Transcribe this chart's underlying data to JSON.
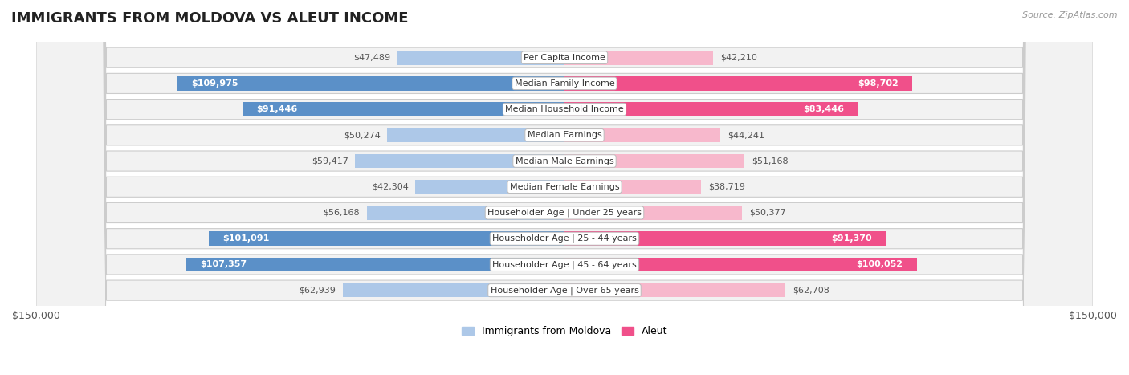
{
  "title": "IMMIGRANTS FROM MOLDOVA VS ALEUT INCOME",
  "source": "Source: ZipAtlas.com",
  "categories": [
    "Per Capita Income",
    "Median Family Income",
    "Median Household Income",
    "Median Earnings",
    "Median Male Earnings",
    "Median Female Earnings",
    "Householder Age | Under 25 years",
    "Householder Age | 25 - 44 years",
    "Householder Age | 45 - 64 years",
    "Householder Age | Over 65 years"
  ],
  "moldova_values": [
    47489,
    109975,
    91446,
    50274,
    59417,
    42304,
    56168,
    101091,
    107357,
    62939
  ],
  "aleut_values": [
    42210,
    98702,
    83446,
    44241,
    51168,
    38719,
    50377,
    91370,
    100052,
    62708
  ],
  "moldova_labels": [
    "$47,489",
    "$109,975",
    "$91,446",
    "$50,274",
    "$59,417",
    "$42,304",
    "$56,168",
    "$101,091",
    "$107,357",
    "$62,939"
  ],
  "aleut_labels": [
    "$42,210",
    "$98,702",
    "$83,446",
    "$44,241",
    "$51,168",
    "$38,719",
    "$50,377",
    "$91,370",
    "$100,052",
    "$62,708"
  ],
  "max_value": 150000,
  "moldova_color_light": "#adc8e8",
  "moldova_color_dark": "#5b90c8",
  "aleut_color_light": "#f7b8cc",
  "aleut_color_dark": "#f0508a",
  "moldova_threshold": 70000,
  "aleut_threshold": 70000,
  "bar_height": 0.55,
  "title_fontsize": 13,
  "label_fontsize": 8,
  "category_fontsize": 8,
  "axis_label_fontsize": 9,
  "background_color": "#ffffff",
  "row_bg_light": "#f2f2f2",
  "row_border_color": "#cccccc",
  "legend_moldova": "Immigrants from Moldova",
  "legend_aleut": "Aleut"
}
